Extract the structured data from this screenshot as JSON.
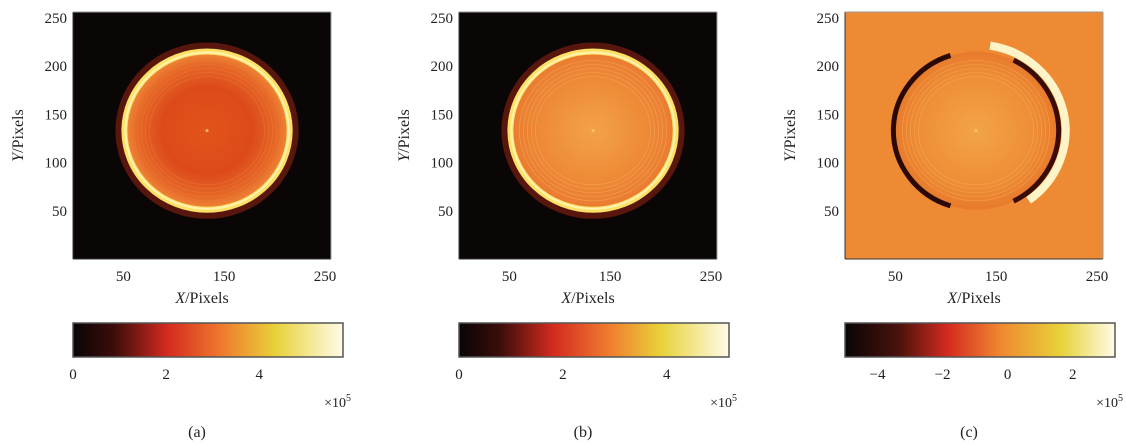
{
  "panels": [
    {
      "caption": "(a)",
      "colorbar_ticks": [
        "0",
        "2",
        "4"
      ],
      "colorbar_range": [
        0,
        5.8
      ],
      "multiplier": "×10",
      "multiplier_exp": "5",
      "colormap": "hot"
    },
    {
      "caption": "(b)",
      "colorbar_ticks": [
        "0",
        "2",
        "4"
      ],
      "colorbar_range": [
        0,
        5.2
      ],
      "multiplier": "×10",
      "multiplier_exp": "5",
      "colormap": "hot"
    },
    {
      "caption": "(c)",
      "colorbar_ticks": [
        "−4",
        "−2",
        "0",
        "2"
      ],
      "colorbar_range": [
        -5,
        3.3
      ],
      "multiplier": "×10",
      "multiplier_exp": "5",
      "colormap": "hot-diverging"
    }
  ],
  "chart_data": [
    {
      "type": "heatmap",
      "xlabel_var": "X",
      "xlabel_unit": "/Pixels",
      "ylabel_var": "Y",
      "ylabel_unit": "/Pixels",
      "xticks": [
        "50",
        "150",
        "250"
      ],
      "yticks": [
        "50",
        "100",
        "150",
        "200",
        "250"
      ],
      "xlim": [
        0,
        256
      ],
      "ylim": [
        0,
        256
      ],
      "feature": "bright ring on dark background",
      "ring_center": [
        133,
        133
      ],
      "ring_radius": 82
    },
    {
      "type": "heatmap",
      "xlabel_var": "X",
      "xlabel_unit": "/Pixels",
      "ylabel_var": "Y",
      "ylabel_unit": "/Pixels",
      "xticks": [
        "50",
        "150",
        "250"
      ],
      "yticks": [
        "50",
        "100",
        "150",
        "200",
        "250"
      ],
      "xlim": [
        0,
        256
      ],
      "ylim": [
        0,
        256
      ],
      "feature": "bright ring on dark background",
      "ring_center": [
        133,
        133
      ],
      "ring_radius": 82
    },
    {
      "type": "heatmap",
      "xlabel_var": "X",
      "xlabel_unit": "/Pixels",
      "ylabel_var": "Y",
      "ylabel_unit": "/Pixels",
      "xticks": [
        "50",
        "150",
        "250"
      ],
      "yticks": [
        "50",
        "100",
        "150",
        "200",
        "250"
      ],
      "xlim": [
        0,
        256
      ],
      "ylim": [
        0,
        256
      ],
      "feature": "difference image: dark left edge, bright right edge",
      "ring_center": [
        130,
        133
      ],
      "ring_radius": 82
    }
  ]
}
